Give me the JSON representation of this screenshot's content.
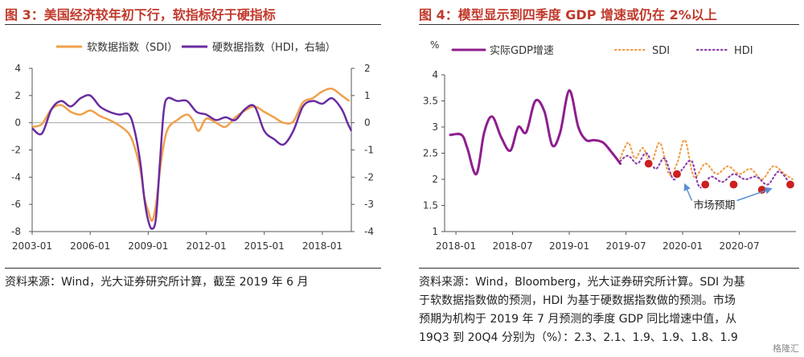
{
  "panel1": {
    "fig_label": "图 3：",
    "title": "美国经济较年初下行，软指标好于硬指标",
    "source": "资料来源：Wind，光大证券研究所计算，截至 2019 年 6 月",
    "legend": [
      "软数据指数（SDI）",
      "硬数据指数（HDI，右轴）"
    ]
  },
  "panel2": {
    "fig_label": "图 4：",
    "title": "模型显示到四季度 GDP 增速或仍在 2%以上",
    "source_lines": [
      "资料来源：Wind，Bloomberg，光大证券研究所计算。SDI 为基",
      "于软数据指数做的预测，HDI 为基于硬数据指数做的预测。市场",
      "预期为机构于 2019 年 7 月预测的季度 GDP 同比增速中值，从",
      "19Q3 到 20Q4 分别为（%）：2.3、2.1、1.9、1.9、1.8、1.9"
    ],
    "watermark": "格隆汇"
  },
  "chart_data": [
    {
      "type": "line",
      "title": "美国经济较年初下行，软指标好于硬指标",
      "x_labels": [
        "2003-01",
        "2006-01",
        "2009-01",
        "2012-01",
        "2015-01",
        "2018-01"
      ],
      "x_range": [
        2003.0,
        2019.5
      ],
      "ylim_left": [
        -8,
        4
      ],
      "yticks_left": [
        "4",
        "2",
        "0",
        "-2",
        "-4",
        "-6",
        "-8"
      ],
      "ylim_right": [
        -4,
        2
      ],
      "yticks_right": [
        "2",
        "1",
        "0",
        "-1",
        "-2",
        "-3",
        "-4"
      ],
      "series": [
        {
          "name": "软数据指数（SDI）",
          "axis": "left",
          "color": "#f0a04b",
          "x": [
            2003.0,
            2003.5,
            2004.0,
            2004.5,
            2005.0,
            2005.5,
            2006.0,
            2006.5,
            2007.0,
            2007.5,
            2008.0,
            2008.3,
            2008.6,
            2008.8,
            2009.0,
            2009.2,
            2009.4,
            2009.7,
            2010.0,
            2010.5,
            2011.0,
            2011.3,
            2011.6,
            2012.0,
            2012.5,
            2013.0,
            2013.5,
            2014.0,
            2014.5,
            2015.0,
            2015.5,
            2016.0,
            2016.5,
            2017.0,
            2017.5,
            2018.0,
            2018.5,
            2019.0,
            2019.4
          ],
          "values": [
            -0.3,
            -0.1,
            1.0,
            1.3,
            0.8,
            0.6,
            0.9,
            0.5,
            0.2,
            -0.2,
            -0.8,
            -1.8,
            -3.5,
            -5.5,
            -6.5,
            -7.2,
            -6.0,
            -2.5,
            -0.5,
            0.2,
            0.6,
            0.2,
            -0.6,
            0.3,
            0.0,
            -0.3,
            0.4,
            0.9,
            1.2,
            0.8,
            0.4,
            0.0,
            0.1,
            1.5,
            1.8,
            2.3,
            2.5,
            2.0,
            1.6
          ]
        },
        {
          "name": "硬数据指数（HDI，右轴）",
          "axis": "right",
          "color": "#6a2ca0",
          "x": [
            2003.0,
            2003.5,
            2004.0,
            2004.5,
            2005.0,
            2005.5,
            2006.0,
            2006.5,
            2007.0,
            2007.5,
            2008.0,
            2008.3,
            2008.6,
            2008.8,
            2009.0,
            2009.2,
            2009.4,
            2009.6,
            2009.8,
            2010.0,
            2010.5,
            2011.0,
            2011.5,
            2012.0,
            2012.5,
            2013.0,
            2013.5,
            2014.0,
            2014.5,
            2015.0,
            2015.5,
            2016.0,
            2016.5,
            2017.0,
            2017.5,
            2018.0,
            2018.5,
            2019.0,
            2019.3,
            2019.5
          ],
          "values": [
            -0.2,
            -0.4,
            0.5,
            0.8,
            0.6,
            0.9,
            1.0,
            0.6,
            0.4,
            0.3,
            0.3,
            -0.3,
            -1.5,
            -2.8,
            -3.6,
            -3.9,
            -3.5,
            -1.5,
            0.4,
            0.9,
            0.8,
            0.8,
            0.4,
            0.3,
            0.1,
            0.2,
            0.1,
            0.5,
            0.6,
            -0.3,
            -0.6,
            -0.8,
            -0.3,
            0.6,
            0.8,
            0.7,
            0.9,
            0.5,
            0.0,
            -0.3
          ]
        }
      ]
    },
    {
      "type": "line",
      "title": "模型显示到四季度 GDP 增速或仍在 2%以上",
      "ylabel": "%",
      "x_labels": [
        "2018-01",
        "2018-07",
        "2019-01",
        "2019-07",
        "2020-01",
        "2020-07"
      ],
      "x_range": [
        2017.9,
        2021.0
      ],
      "ylim": [
        1,
        4
      ],
      "yticks": [
        "4",
        "3.5",
        "3",
        "2.5",
        "2",
        "1.5",
        "1"
      ],
      "series": [
        {
          "name": "实际GDP增速",
          "color": "#8e1e8e",
          "style": "solid",
          "x": [
            2017.95,
            2018.05,
            2018.1,
            2018.18,
            2018.25,
            2018.32,
            2018.4,
            2018.48,
            2018.55,
            2018.62,
            2018.7,
            2018.78,
            2018.85,
            2018.92,
            2019.0,
            2019.08,
            2019.15,
            2019.22,
            2019.3,
            2019.38,
            2019.45
          ],
          "values": [
            2.85,
            2.85,
            2.6,
            2.1,
            2.9,
            3.2,
            2.8,
            2.55,
            3.0,
            2.9,
            3.5,
            3.3,
            2.65,
            2.9,
            3.7,
            3.0,
            2.75,
            2.75,
            2.7,
            2.5,
            2.3
          ]
        },
        {
          "name": "SDI",
          "color": "#f0a04b",
          "style": "dotted",
          "x": [
            2019.45,
            2019.52,
            2019.58,
            2019.65,
            2019.72,
            2019.8,
            2019.88,
            2019.95,
            2020.02,
            2020.1,
            2020.2,
            2020.3,
            2020.4,
            2020.5,
            2020.6,
            2020.7,
            2020.8,
            2020.9,
            2020.97
          ],
          "values": [
            2.4,
            2.7,
            2.4,
            2.6,
            2.3,
            2.7,
            2.1,
            2.3,
            2.75,
            2.05,
            2.3,
            2.1,
            2.25,
            2.1,
            2.2,
            2.0,
            2.25,
            2.1,
            2.0
          ]
        },
        {
          "name": "HDI",
          "color": "#8e44ad",
          "style": "dotted",
          "x": [
            2019.45,
            2019.52,
            2019.6,
            2019.68,
            2019.76,
            2019.84,
            2019.92,
            2020.0,
            2020.08,
            2020.15,
            2020.25,
            2020.35,
            2020.45,
            2020.55,
            2020.65,
            2020.75,
            2020.85,
            2020.95
          ],
          "values": [
            2.35,
            2.45,
            2.3,
            2.5,
            2.2,
            2.4,
            2.0,
            2.2,
            2.35,
            1.85,
            2.05,
            1.95,
            2.1,
            2.0,
            2.05,
            1.9,
            2.15,
            1.9
          ]
        },
        {
          "name": "市场预期",
          "color": "#cc1f1f",
          "style": "markers",
          "x": [
            2019.7,
            2019.95,
            2020.2,
            2020.45,
            2020.7,
            2020.95
          ],
          "values": [
            2.3,
            2.1,
            1.9,
            1.9,
            1.8,
            1.9
          ]
        }
      ],
      "annotation": "市场预期"
    }
  ]
}
